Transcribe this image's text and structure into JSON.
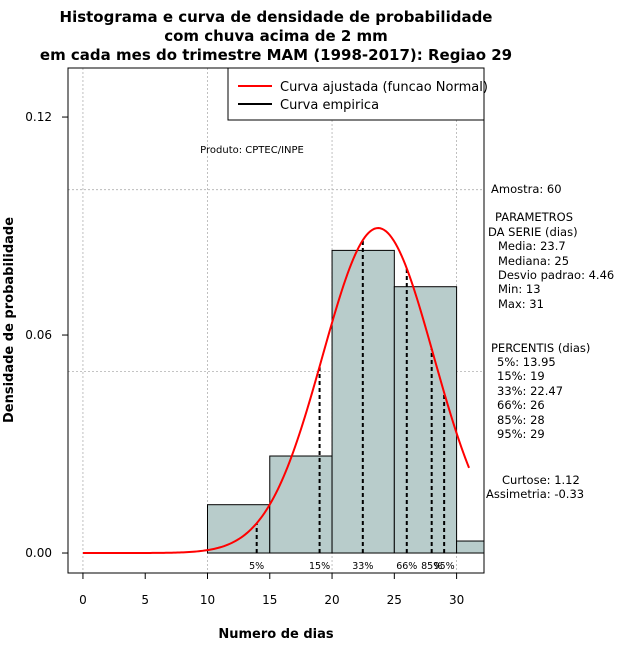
{
  "chart_data": {
    "type": "bar",
    "title_lines": [
      "Histograma e curva de densidade de probabilidade",
      "com chuva acima de 2 mm",
      "em cada mes do trimestre MAM (1998-2017): Regiao 29"
    ],
    "xlabel": "Numero de dias",
    "ylabel": "Densidade de probabilidade",
    "xlim": [
      -1.2,
      32.2
    ],
    "ylim": [
      -0.0055,
      0.1335
    ],
    "xticks": [
      0,
      5,
      10,
      15,
      20,
      25,
      30
    ],
    "xtick_labels": [
      "0",
      "5",
      "10",
      "15",
      "20",
      "25",
      "30"
    ],
    "yticks": [
      0.0,
      0.06,
      0.12
    ],
    "ytick_labels": [
      "0.00",
      "0.06",
      "0.12"
    ],
    "grid_lines_y": [
      0.05,
      0.1
    ],
    "grid_lines_x": [
      0,
      10,
      20,
      30
    ],
    "grid": true,
    "legend_position": "top-right",
    "product_label": "Produto: CPTEC/INPE",
    "bins": [
      {
        "x0": 10,
        "x1": 15,
        "density": 0.0133
      },
      {
        "x0": 15,
        "x1": 20,
        "density": 0.0267
      },
      {
        "x0": 20,
        "x1": 25,
        "density": 0.0833
      },
      {
        "x0": 25,
        "x1": 30,
        "density": 0.0733
      },
      {
        "x0": 30,
        "x1": 35,
        "density": 0.0033
      }
    ],
    "bar_color": "#b8cccb",
    "series": [
      {
        "name": "Curva ajustada (funcao Normal)",
        "color": "#ff0000",
        "mean": 23.7,
        "sd": 4.46,
        "x_range": [
          0,
          31
        ]
      },
      {
        "name": "Curva empirica",
        "color": "#000000"
      }
    ],
    "percentile_lines": [
      {
        "label": "5%",
        "x": 13.95
      },
      {
        "label": "15%",
        "x": 19
      },
      {
        "label": "33%",
        "x": 22.47
      },
      {
        "label": "66%",
        "x": 26
      },
      {
        "label": "85%",
        "x": 28
      },
      {
        "label": "95%",
        "x": 29
      }
    ]
  },
  "stats": {
    "amostra": "Amostra: 60",
    "param_heading_1": "PARAMETROS",
    "param_heading_2": "DA SERIE (dias)",
    "params": [
      "Media: 23.7",
      "Mediana: 25",
      "Desvio padrao: 4.46",
      "Min: 13",
      "Max: 31"
    ],
    "percentis_heading": "PERCENTIS (dias)",
    "percentis": [
      "5%: 13.95",
      "15%: 19",
      "33%: 22.47",
      "66%: 26",
      "85%: 28",
      "95%: 29"
    ],
    "curtose": "Curtose: 1.12",
    "assimetria": "Assimetria: -0.33"
  },
  "colors": {
    "plot_border": "#000000",
    "grid": "#b0b0b0",
    "fit_curve": "#ff0000"
  }
}
